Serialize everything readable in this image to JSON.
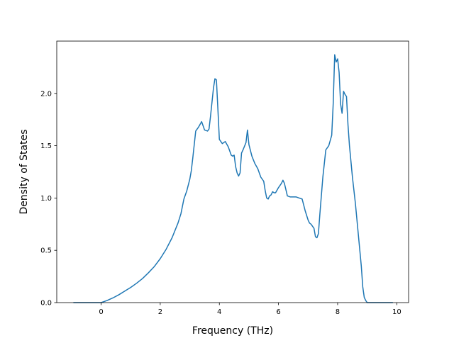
{
  "chart_data": {
    "type": "line",
    "title": "",
    "xlabel": "Frequency (THz)",
    "ylabel": "Density of States",
    "xlim": [
      -1.5,
      10.4
    ],
    "ylim": [
      0.0,
      2.5
    ],
    "xticks": [
      0,
      2,
      4,
      6,
      8,
      10
    ],
    "yticks": [
      0.0,
      0.5,
      1.0,
      1.5,
      2.0
    ],
    "xtick_labels": [
      "0",
      "2",
      "4",
      "6",
      "8",
      "10"
    ],
    "ytick_labels": [
      "0.0",
      "0.5",
      "1.0",
      "1.5",
      "2.0"
    ],
    "grid": false,
    "legend": "none",
    "line_color": "#1f77b4",
    "series": [
      {
        "x": [
          -0.92,
          -0.5,
          0.0,
          0.2,
          0.4,
          0.6,
          0.8,
          1.0,
          1.2,
          1.4,
          1.6,
          1.8,
          2.0,
          2.2,
          2.4,
          2.6,
          2.7,
          2.8,
          2.9,
          3.0,
          3.05,
          3.1,
          3.2,
          3.3,
          3.4,
          3.5,
          3.6,
          3.65,
          3.7,
          3.8,
          3.85,
          3.9,
          3.95,
          4.0,
          4.1,
          4.2,
          4.3,
          4.4,
          4.45,
          4.5,
          4.55,
          4.6,
          4.65,
          4.7,
          4.75,
          4.8,
          4.9,
          4.95,
          5.0,
          5.1,
          5.2,
          5.3,
          5.4,
          5.5,
          5.55,
          5.6,
          5.65,
          5.7,
          5.75,
          5.8,
          5.85,
          5.9,
          6.0,
          6.1,
          6.15,
          6.2,
          6.25,
          6.3,
          6.4,
          6.5,
          6.6,
          6.7,
          6.8,
          6.9,
          7.0,
          7.05,
          7.1,
          7.2,
          7.25,
          7.3,
          7.35,
          7.4,
          7.5,
          7.6,
          7.7,
          7.8,
          7.85,
          7.9,
          7.95,
          8.0,
          8.05,
          8.1,
          8.15,
          8.2,
          8.25,
          8.3,
          8.35,
          8.4,
          8.5,
          8.6,
          8.7,
          8.8,
          8.85,
          8.9,
          8.95,
          9.0,
          9.2,
          9.5,
          9.85
        ],
        "y": [
          0.0,
          0.0,
          0.0,
          0.02,
          0.045,
          0.075,
          0.11,
          0.145,
          0.185,
          0.23,
          0.285,
          0.345,
          0.42,
          0.51,
          0.62,
          0.76,
          0.85,
          0.99,
          1.07,
          1.18,
          1.26,
          1.38,
          1.64,
          1.68,
          1.73,
          1.65,
          1.64,
          1.66,
          1.78,
          2.05,
          2.14,
          2.13,
          1.85,
          1.56,
          1.52,
          1.54,
          1.49,
          1.41,
          1.4,
          1.41,
          1.3,
          1.24,
          1.21,
          1.24,
          1.43,
          1.46,
          1.53,
          1.65,
          1.51,
          1.4,
          1.33,
          1.28,
          1.2,
          1.16,
          1.07,
          1.0,
          0.99,
          1.02,
          1.03,
          1.06,
          1.05,
          1.05,
          1.1,
          1.14,
          1.17,
          1.14,
          1.08,
          1.02,
          1.01,
          1.01,
          1.01,
          1.0,
          0.99,
          0.88,
          0.79,
          0.76,
          0.75,
          0.71,
          0.63,
          0.62,
          0.66,
          0.85,
          1.2,
          1.46,
          1.5,
          1.6,
          1.9,
          2.37,
          2.3,
          2.33,
          2.2,
          1.9,
          1.81,
          2.02,
          1.99,
          1.97,
          1.7,
          1.5,
          1.2,
          0.95,
          0.65,
          0.35,
          0.15,
          0.05,
          0.02,
          0.0,
          0.0,
          0.0,
          0.0
        ]
      }
    ]
  }
}
